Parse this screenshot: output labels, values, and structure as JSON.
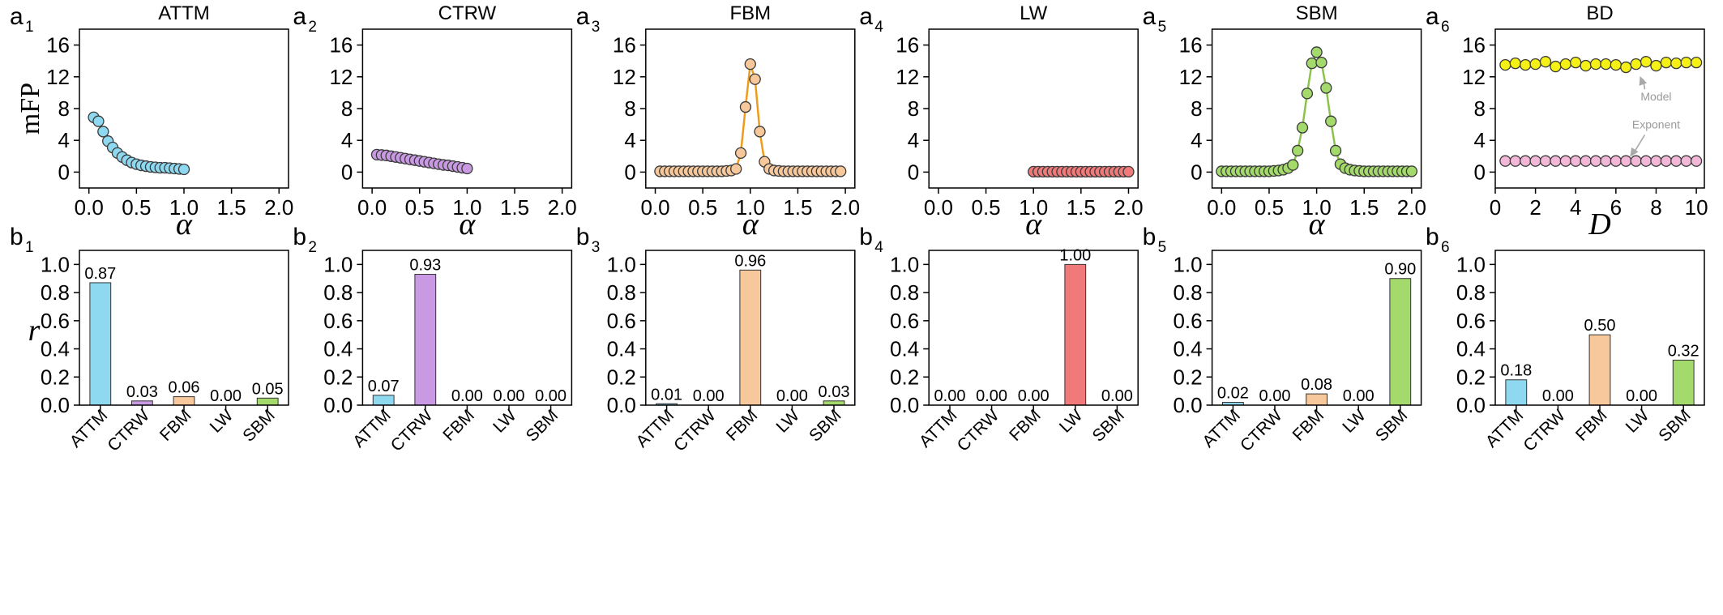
{
  "chart_data": [
    {
      "id": "a1",
      "type": "scatter-line",
      "panel_letter": "a",
      "panel_index": "1",
      "title": "ATTM",
      "xlabel": "α",
      "ylabel": "mFP",
      "xlim": [
        -0.1,
        2.1
      ],
      "ylim": [
        -2,
        18
      ],
      "xticks": [
        "0.0",
        "0.5",
        "1.0",
        "1.5",
        "2.0"
      ],
      "yticks": [
        "0",
        "4",
        "8",
        "12",
        "16"
      ],
      "color": "#8ed8f0",
      "line": false,
      "x": [
        0.05,
        0.1,
        0.15,
        0.2,
        0.25,
        0.3,
        0.35,
        0.4,
        0.45,
        0.5,
        0.55,
        0.6,
        0.65,
        0.7,
        0.75,
        0.8,
        0.85,
        0.9,
        0.95,
        1.0
      ],
      "y": [
        6.9,
        6.4,
        5.1,
        3.9,
        3.1,
        2.4,
        1.9,
        1.5,
        1.2,
        1.0,
        0.85,
        0.75,
        0.65,
        0.6,
        0.55,
        0.55,
        0.5,
        0.45,
        0.4,
        0.35
      ]
    },
    {
      "id": "a2",
      "type": "scatter-line",
      "panel_letter": "a",
      "panel_index": "2",
      "title": "CTRW",
      "xlabel": "α",
      "ylabel": "",
      "xlim": [
        -0.1,
        2.1
      ],
      "ylim": [
        -2,
        18
      ],
      "xticks": [
        "0.0",
        "0.5",
        "1.0",
        "1.5",
        "2.0"
      ],
      "yticks": [
        "0",
        "4",
        "8",
        "12",
        "16"
      ],
      "color": "#c99ae3",
      "line": false,
      "x": [
        0.05,
        0.1,
        0.15,
        0.2,
        0.25,
        0.3,
        0.35,
        0.4,
        0.45,
        0.5,
        0.55,
        0.6,
        0.65,
        0.7,
        0.75,
        0.8,
        0.85,
        0.9,
        0.95,
        1.0
      ],
      "y": [
        2.2,
        2.15,
        2.1,
        2.0,
        1.9,
        1.8,
        1.7,
        1.6,
        1.5,
        1.4,
        1.3,
        1.2,
        1.1,
        1.0,
        0.9,
        0.85,
        0.75,
        0.65,
        0.55,
        0.45
      ]
    },
    {
      "id": "a3",
      "type": "scatter-line",
      "panel_letter": "a",
      "panel_index": "3",
      "title": "FBM",
      "xlabel": "α",
      "ylabel": "",
      "xlim": [
        -0.1,
        2.1
      ],
      "ylim": [
        -2,
        18
      ],
      "xticks": [
        "0.0",
        "0.5",
        "1.0",
        "1.5",
        "2.0"
      ],
      "yticks": [
        "0",
        "4",
        "8",
        "12",
        "16"
      ],
      "color": "#f7c89b",
      "line": true,
      "line_color": "#ef9c1a",
      "x": [
        0.05,
        0.1,
        0.15,
        0.2,
        0.25,
        0.3,
        0.35,
        0.4,
        0.45,
        0.5,
        0.55,
        0.6,
        0.65,
        0.7,
        0.75,
        0.8,
        0.85,
        0.9,
        0.95,
        1.0,
        1.05,
        1.1,
        1.15,
        1.2,
        1.25,
        1.3,
        1.35,
        1.4,
        1.45,
        1.5,
        1.55,
        1.6,
        1.65,
        1.7,
        1.75,
        1.8,
        1.85,
        1.9,
        1.95
      ],
      "y": [
        0.1,
        0.1,
        0.1,
        0.1,
        0.1,
        0.1,
        0.1,
        0.1,
        0.1,
        0.1,
        0.1,
        0.1,
        0.1,
        0.1,
        0.15,
        0.2,
        0.4,
        2.4,
        8.2,
        13.6,
        11.7,
        5.1,
        1.3,
        0.4,
        0.2,
        0.15,
        0.1,
        0.1,
        0.1,
        0.1,
        0.1,
        0.1,
        0.1,
        0.1,
        0.1,
        0.1,
        0.1,
        0.1,
        0.1
      ]
    },
    {
      "id": "a4",
      "type": "scatter-line",
      "panel_letter": "a",
      "panel_index": "4",
      "title": "LW",
      "xlabel": "α",
      "ylabel": "",
      "xlim": [
        -0.1,
        2.1
      ],
      "ylim": [
        -2,
        18
      ],
      "xticks": [
        "0.0",
        "0.5",
        "1.0",
        "1.5",
        "2.0"
      ],
      "yticks": [
        "0",
        "4",
        "8",
        "12",
        "16"
      ],
      "color": "#f07a7a",
      "line": false,
      "x": [
        1.0,
        1.05,
        1.1,
        1.15,
        1.2,
        1.25,
        1.3,
        1.35,
        1.4,
        1.45,
        1.5,
        1.55,
        1.6,
        1.65,
        1.7,
        1.75,
        1.8,
        1.85,
        1.9,
        1.95,
        2.0
      ],
      "y": [
        0.05,
        0.05,
        0.05,
        0.05,
        0.05,
        0.05,
        0.05,
        0.05,
        0.05,
        0.05,
        0.05,
        0.05,
        0.05,
        0.05,
        0.05,
        0.05,
        0.05,
        0.05,
        0.05,
        0.05,
        0.05
      ]
    },
    {
      "id": "a5",
      "type": "scatter-line",
      "panel_letter": "a",
      "panel_index": "5",
      "title": "SBM",
      "xlabel": "α",
      "ylabel": "",
      "xlim": [
        -0.1,
        2.1
      ],
      "ylim": [
        -2,
        18
      ],
      "xticks": [
        "0.0",
        "0.5",
        "1.0",
        "1.5",
        "2.0"
      ],
      "yticks": [
        "0",
        "4",
        "8",
        "12",
        "16"
      ],
      "color": "#a4d96c",
      "line": true,
      "line_color": "#8bc34a",
      "x": [
        0.0,
        0.05,
        0.1,
        0.15,
        0.2,
        0.25,
        0.3,
        0.35,
        0.4,
        0.45,
        0.5,
        0.55,
        0.6,
        0.65,
        0.7,
        0.75,
        0.8,
        0.85,
        0.9,
        0.95,
        1.0,
        1.05,
        1.1,
        1.15,
        1.2,
        1.25,
        1.3,
        1.35,
        1.4,
        1.45,
        1.5,
        1.55,
        1.6,
        1.65,
        1.7,
        1.75,
        1.8,
        1.85,
        1.9,
        1.95,
        2.0
      ],
      "y": [
        0.1,
        0.1,
        0.1,
        0.1,
        0.1,
        0.1,
        0.1,
        0.1,
        0.1,
        0.1,
        0.1,
        0.15,
        0.2,
        0.3,
        0.5,
        0.9,
        2.7,
        5.6,
        9.9,
        13.7,
        15.1,
        13.8,
        10.6,
        6.4,
        2.7,
        1.0,
        0.5,
        0.3,
        0.2,
        0.15,
        0.1,
        0.1,
        0.1,
        0.1,
        0.1,
        0.1,
        0.1,
        0.1,
        0.1,
        0.1,
        0.1
      ]
    },
    {
      "id": "a6",
      "type": "scatter-line",
      "panel_letter": "a",
      "panel_index": "6",
      "title": "BD",
      "xlabel": "D",
      "ylabel": "",
      "xlim": [
        0,
        10.4
      ],
      "ylim": [
        -2,
        18
      ],
      "xticks": [
        "0",
        "2",
        "4",
        "6",
        "8",
        "10"
      ],
      "yticks": [
        "0",
        "4",
        "8",
        "12",
        "16"
      ],
      "line": false,
      "series": [
        {
          "name": "Model",
          "color": "#f5f016",
          "x": [
            0.5,
            1.0,
            1.5,
            2.0,
            2.5,
            3.0,
            3.5,
            4.0,
            4.5,
            5.0,
            5.5,
            6.0,
            6.5,
            7.0,
            7.5,
            8.0,
            8.5,
            9.0,
            9.5,
            10.0
          ],
          "y": [
            13.5,
            13.7,
            13.5,
            13.6,
            13.9,
            13.3,
            13.6,
            13.8,
            13.4,
            13.6,
            13.6,
            13.5,
            13.2,
            13.6,
            13.9,
            13.4,
            13.8,
            13.7,
            13.8,
            13.8
          ]
        },
        {
          "name": "Exponent",
          "color": "#f3b8d8",
          "x": [
            0.5,
            1.0,
            1.5,
            2.0,
            2.5,
            3.0,
            3.5,
            4.0,
            4.5,
            5.0,
            5.5,
            6.0,
            6.5,
            7.0,
            7.5,
            8.0,
            8.5,
            9.0,
            9.5,
            10.0
          ],
          "y": [
            1.4,
            1.4,
            1.4,
            1.4,
            1.4,
            1.4,
            1.4,
            1.4,
            1.4,
            1.4,
            1.4,
            1.4,
            1.4,
            1.4,
            1.4,
            1.4,
            1.4,
            1.4,
            1.4,
            1.4
          ]
        }
      ],
      "annotations": [
        {
          "text": "Model",
          "ax": 7.2,
          "ay": 12.1,
          "tx": 8.0,
          "ty": 9.0
        },
        {
          "text": "Exponent",
          "ax": 6.7,
          "ay": 1.9,
          "tx": 8.0,
          "ty": 5.5
        }
      ]
    },
    {
      "id": "b1",
      "type": "bar",
      "panel_letter": "b",
      "panel_index": "1",
      "ylabel": "r",
      "categories": [
        "ATTM",
        "CTRW",
        "FBM",
        "LW",
        "SBM"
      ],
      "values": [
        0.87,
        0.03,
        0.06,
        0.0,
        0.05
      ],
      "labels": [
        "0.87",
        "0.03",
        "0.06",
        "0.00",
        "0.05"
      ],
      "ylim": [
        0,
        1.1
      ],
      "yticks": [
        "0.0",
        "0.2",
        "0.4",
        "0.6",
        "0.8",
        "1.0"
      ]
    },
    {
      "id": "b2",
      "type": "bar",
      "panel_letter": "b",
      "panel_index": "2",
      "ylabel": "",
      "categories": [
        "ATTM",
        "CTRW",
        "FBM",
        "LW",
        "SBM"
      ],
      "values": [
        0.07,
        0.93,
        0.0,
        0.0,
        0.0
      ],
      "labels": [
        "0.07",
        "0.93",
        "0.00",
        "0.00",
        "0.00"
      ],
      "ylim": [
        0,
        1.1
      ],
      "yticks": [
        "0.0",
        "0.2",
        "0.4",
        "0.6",
        "0.8",
        "1.0"
      ]
    },
    {
      "id": "b3",
      "type": "bar",
      "panel_letter": "b",
      "panel_index": "3",
      "ylabel": "",
      "categories": [
        "ATTM",
        "CTRW",
        "FBM",
        "LW",
        "SBM"
      ],
      "values": [
        0.01,
        0.0,
        0.96,
        0.0,
        0.03
      ],
      "labels": [
        "0.01",
        "0.00",
        "0.96",
        "0.00",
        "0.03"
      ],
      "ylim": [
        0,
        1.1
      ],
      "yticks": [
        "0.0",
        "0.2",
        "0.4",
        "0.6",
        "0.8",
        "1.0"
      ]
    },
    {
      "id": "b4",
      "type": "bar",
      "panel_letter": "b",
      "panel_index": "4",
      "ylabel": "",
      "categories": [
        "ATTM",
        "CTRW",
        "FBM",
        "LW",
        "SBM"
      ],
      "values": [
        0.0,
        0.0,
        0.0,
        1.0,
        0.0
      ],
      "labels": [
        "0.00",
        "0.00",
        "0.00",
        "1.00",
        "0.00"
      ],
      "ylim": [
        0,
        1.1
      ],
      "yticks": [
        "0.0",
        "0.2",
        "0.4",
        "0.6",
        "0.8",
        "1.0"
      ]
    },
    {
      "id": "b5",
      "type": "bar",
      "panel_letter": "b",
      "panel_index": "5",
      "ylabel": "",
      "categories": [
        "ATTM",
        "CTRW",
        "FBM",
        "LW",
        "SBM"
      ],
      "values": [
        0.02,
        0.0,
        0.08,
        0.0,
        0.9
      ],
      "labels": [
        "0.02",
        "0.00",
        "0.08",
        "0.00",
        "0.90"
      ],
      "ylim": [
        0,
        1.1
      ],
      "yticks": [
        "0.0",
        "0.2",
        "0.4",
        "0.6",
        "0.8",
        "1.0"
      ]
    },
    {
      "id": "b6",
      "type": "bar",
      "panel_letter": "b",
      "panel_index": "6",
      "ylabel": "",
      "categories": [
        "ATTM",
        "CTRW",
        "FBM",
        "LW",
        "SBM"
      ],
      "values": [
        0.18,
        0.0,
        0.5,
        0.0,
        0.32
      ],
      "labels": [
        "0.18",
        "0.00",
        "0.50",
        "0.00",
        "0.32"
      ],
      "ylim": [
        0,
        1.1
      ],
      "yticks": [
        "0.0",
        "0.2",
        "0.4",
        "0.6",
        "0.8",
        "1.0"
      ]
    }
  ],
  "category_colors": [
    "#8ed8f0",
    "#c99ae3",
    "#f7c89b",
    "#f07a7a",
    "#a4d96c"
  ]
}
